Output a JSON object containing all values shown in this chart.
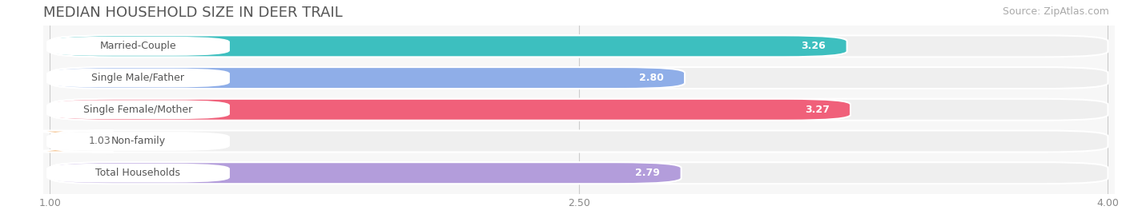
{
  "title": "MEDIAN HOUSEHOLD SIZE IN DEER TRAIL",
  "source": "Source: ZipAtlas.com",
  "categories": [
    "Married-Couple",
    "Single Male/Father",
    "Single Female/Mother",
    "Non-family",
    "Total Households"
  ],
  "values": [
    3.26,
    2.8,
    3.27,
    1.03,
    2.79
  ],
  "bar_colors": [
    "#3dbfbf",
    "#8faee8",
    "#f0607a",
    "#f5c89a",
    "#b39ddb"
  ],
  "bar_bg_color": "#efefef",
  "xmin": 1.0,
  "xmax": 4.0,
  "xticks": [
    1.0,
    2.5,
    4.0
  ],
  "title_fontsize": 13,
  "source_fontsize": 9,
  "label_fontsize": 9,
  "value_fontsize": 9,
  "background_color": "#ffffff",
  "plot_bg_color": "#f7f7f7"
}
